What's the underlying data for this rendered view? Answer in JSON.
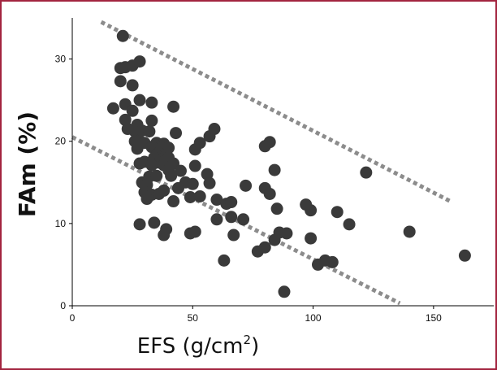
{
  "chart_data": {
    "type": "scatter",
    "title": "",
    "xlabel": "EFS (g/cm",
    "xlabel_superscript": "2",
    "xlabel_suffix": ")",
    "ylabel": "FAm (%)",
    "xlim": [
      0,
      175
    ],
    "ylim": [
      0,
      35
    ],
    "xticks": [
      0,
      50,
      100,
      150
    ],
    "yticks": [
      0,
      10,
      20,
      30
    ],
    "grid": false,
    "colors": {
      "points": "#3a3a3a",
      "bounds": "#8c8c8c",
      "axes": "#000000",
      "frame": "#a3243f"
    },
    "boundary_lines": [
      {
        "style": "dotted",
        "x": [
          12,
          157
        ],
        "y": [
          34.5,
          12.7
        ]
      },
      {
        "style": "dotted",
        "x": [
          0,
          136
        ],
        "y": [
          20.5,
          0.3
        ]
      }
    ],
    "series": [
      {
        "points": [
          [
            21,
            32.8
          ],
          [
            20,
            28.9
          ],
          [
            22,
            29
          ],
          [
            25,
            29.2
          ],
          [
            28,
            29.7
          ],
          [
            20,
            27.3
          ],
          [
            25,
            26.8
          ],
          [
            17,
            24
          ],
          [
            22,
            24.5
          ],
          [
            28,
            25
          ],
          [
            33,
            24.7
          ],
          [
            42,
            24.2
          ],
          [
            25,
            23.7
          ],
          [
            22,
            22.6
          ],
          [
            27,
            22
          ],
          [
            33,
            22.5
          ],
          [
            23,
            21.5
          ],
          [
            26,
            21.2
          ],
          [
            29,
            21.3
          ],
          [
            32,
            21.2
          ],
          [
            26,
            20
          ],
          [
            28,
            20
          ],
          [
            30,
            19.8
          ],
          [
            35,
            19.8
          ],
          [
            38,
            19.7
          ],
          [
            33,
            19.3
          ],
          [
            37,
            19.2
          ],
          [
            40,
            19.2
          ],
          [
            27,
            19.1
          ],
          [
            36,
            18.6
          ],
          [
            35,
            18.3
          ],
          [
            39,
            18.3
          ],
          [
            34,
            18
          ],
          [
            40,
            18
          ],
          [
            30,
            17.5
          ],
          [
            36,
            17.4
          ],
          [
            28,
            17.3
          ],
          [
            33,
            17.1
          ],
          [
            38,
            17.1
          ],
          [
            42,
            17.3
          ],
          [
            40,
            16.5
          ],
          [
            45,
            16.4
          ],
          [
            32,
            15.7
          ],
          [
            35,
            15.8
          ],
          [
            41,
            15.8
          ],
          [
            29,
            15
          ],
          [
            31,
            14.7
          ],
          [
            47,
            15
          ],
          [
            38,
            14
          ],
          [
            44,
            14.3
          ],
          [
            50,
            14.8
          ],
          [
            30,
            13.8
          ],
          [
            33,
            13.5
          ],
          [
            36,
            13.6
          ],
          [
            31,
            13
          ],
          [
            42,
            12.7
          ],
          [
            49,
            13.2
          ],
          [
            43,
            21
          ],
          [
            51,
            19
          ],
          [
            53,
            19.8
          ],
          [
            57,
            20.6
          ],
          [
            59,
            21.5
          ],
          [
            51,
            17
          ],
          [
            56,
            16
          ],
          [
            57,
            14.9
          ],
          [
            53,
            13.3
          ],
          [
            60,
            12.9
          ],
          [
            64,
            12.4
          ],
          [
            66,
            12.6
          ],
          [
            60,
            10.5
          ],
          [
            66,
            10.8
          ],
          [
            71,
            10.5
          ],
          [
            72,
            14.6
          ],
          [
            80,
            19.4
          ],
          [
            82,
            19.9
          ],
          [
            84,
            16.5
          ],
          [
            80,
            14.3
          ],
          [
            82,
            13.6
          ],
          [
            85,
            11.8
          ],
          [
            86,
            8.9
          ],
          [
            89,
            8.8
          ],
          [
            84,
            8
          ],
          [
            80,
            7.1
          ],
          [
            77,
            6.6
          ],
          [
            67,
            8.6
          ],
          [
            49,
            8.8
          ],
          [
            51,
            9
          ],
          [
            38,
            8.6
          ],
          [
            39,
            9.3
          ],
          [
            34,
            10.1
          ],
          [
            28,
            9.9
          ],
          [
            63,
            5.5
          ],
          [
            88,
            1.7
          ],
          [
            97,
            12.3
          ],
          [
            99,
            11.6
          ],
          [
            99,
            8.2
          ],
          [
            102,
            5
          ],
          [
            105,
            5.5
          ],
          [
            108,
            5.3
          ],
          [
            110,
            11.4
          ],
          [
            115,
            9.9
          ],
          [
            122,
            16.2
          ],
          [
            140,
            9
          ],
          [
            163,
            6.1
          ]
        ]
      }
    ]
  }
}
